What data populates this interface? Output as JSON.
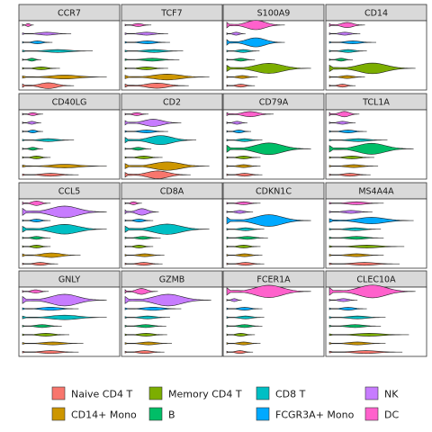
{
  "chart_data": {
    "type": "violin",
    "layout": "facet-grid-4x4",
    "xlabel": "",
    "ylabel": "",
    "groups": [
      "Naive CD4 T",
      "Memory CD4 T",
      "CD14+ Mono",
      "B",
      "CD8 T",
      "FCGR3A+ Mono",
      "NK",
      "DC"
    ],
    "colors": {
      "Naive CD4 T": "#F8766D",
      "CD14+ Mono": "#CD9600",
      "Memory CD4 T": "#7CAE00",
      "B": "#00BE67",
      "CD8 T": "#00BFC4",
      "FCGR3A+ Mono": "#00A9FF",
      "NK": "#C77CFF",
      "DC": "#FF61CC"
    },
    "row_order_bottom_to_top": [
      "Naive CD4 T",
      "CD14+ Mono",
      "Memory CD4 T",
      "B",
      "CD8 T",
      "FCGR3A+ Mono",
      "NK",
      "DC"
    ],
    "panels": [
      {
        "gene": "CCR7",
        "max": [
          0.55,
          0.4,
          0.9,
          0.2,
          0.75,
          0.32,
          0.52,
          0.12
        ],
        "width": [
          0.45,
          0.05,
          0.3,
          0.08,
          0.1,
          0.04,
          0.06,
          0.12
        ]
      },
      {
        "gene": "TCF7",
        "max": [
          0.68,
          0.46,
          0.9,
          0.58,
          0.62,
          0.48,
          0.46,
          0.28
        ],
        "width": [
          0.4,
          0.05,
          0.45,
          0.1,
          0.2,
          0.15,
          0.1,
          0.15
        ]
      },
      {
        "gene": "S100A9",
        "max": [
          0.3,
          0.9,
          0.33,
          0.3,
          0.35,
          0.62,
          0.2,
          0.62
        ],
        "width": [
          0.06,
          0.78,
          0.06,
          0.05,
          0.06,
          0.7,
          0.06,
          0.72
        ]
      },
      {
        "gene": "CD14",
        "max": [
          0.28,
          0.92,
          0.38,
          0.25,
          0.4,
          0.5,
          0.33,
          0.38
        ],
        "width": [
          0.04,
          0.82,
          0.04,
          0.04,
          0.05,
          0.08,
          0.05,
          0.4
        ]
      },
      {
        "gene": "CD40LG",
        "max": [
          0.6,
          0.3,
          0.9,
          0.22,
          0.55,
          0.22,
          0.2,
          0.22
        ],
        "width": [
          0.12,
          0.05,
          0.28,
          0.04,
          0.06,
          0.04,
          0.05,
          0.06
        ]
      },
      {
        "gene": "CD2",
        "max": [
          0.7,
          0.4,
          0.9,
          0.28,
          0.76,
          0.46,
          0.6,
          0.25
        ],
        "width": [
          0.6,
          0.05,
          0.65,
          0.06,
          0.7,
          0.08,
          0.55,
          0.1
        ]
      },
      {
        "gene": "CD79A",
        "max": [
          0.38,
          0.36,
          0.36,
          0.9,
          0.38,
          0.26,
          0.22,
          0.5
        ],
        "width": [
          0.05,
          0.04,
          0.05,
          0.9,
          0.04,
          0.04,
          0.04,
          0.4
        ]
      },
      {
        "gene": "TCL1A",
        "max": [
          0.44,
          0.48,
          0.52,
          0.9,
          0.62,
          0.4,
          0.28,
          0.32
        ],
        "width": [
          0.08,
          0.04,
          0.08,
          0.85,
          0.08,
          0.04,
          0.06,
          0.42
        ]
      },
      {
        "gene": "CCL5",
        "max": [
          0.38,
          0.3,
          0.62,
          0.3,
          0.9,
          0.3,
          0.9,
          0.3
        ],
        "width": [
          0.08,
          0.04,
          0.35,
          0.04,
          0.75,
          0.06,
          0.9,
          0.35
        ]
      },
      {
        "gene": "CD8A",
        "max": [
          0.4,
          0.3,
          0.42,
          0.38,
          0.9,
          0.3,
          0.36,
          0.18
        ],
        "width": [
          0.08,
          0.04,
          0.06,
          0.04,
          0.8,
          0.05,
          0.5,
          0.06
        ]
      },
      {
        "gene": "CDKN1C",
        "max": [
          0.4,
          0.36,
          0.38,
          0.44,
          0.4,
          0.9,
          0.28,
          0.36
        ],
        "width": [
          0.05,
          0.05,
          0.05,
          0.05,
          0.05,
          0.9,
          0.04,
          0.05
        ]
      },
      {
        "gene": "MS4A4A",
        "max": [
          0.75,
          0.8,
          0.58,
          0.58,
          0.55,
          0.9,
          0.46,
          0.58
        ],
        "width": [
          0.04,
          0.05,
          0.04,
          0.04,
          0.04,
          0.5,
          0.04,
          0.04
        ]
      },
      {
        "gene": "GNLY",
        "max": [
          0.6,
          0.5,
          0.65,
          0.42,
          0.9,
          0.6,
          0.9,
          0.28
        ],
        "width": [
          0.05,
          0.04,
          0.06,
          0.05,
          0.35,
          0.25,
          0.9,
          0.25
        ]
      },
      {
        "gene": "GZMB",
        "max": [
          0.42,
          0.45,
          0.5,
          0.44,
          0.48,
          0.6,
          0.92,
          0.35
        ],
        "width": [
          0.04,
          0.04,
          0.04,
          0.04,
          0.06,
          0.25,
          0.9,
          0.45
        ]
      },
      {
        "gene": "FCER1A",
        "max": [
          0.28,
          0.3,
          0.36,
          0.38,
          0.4,
          0.38,
          0.16,
          0.9
        ],
        "width": [
          0.04,
          0.04,
          0.04,
          0.04,
          0.04,
          0.04,
          0.04,
          0.95
        ]
      },
      {
        "gene": "CLEC10A",
        "max": [
          0.78,
          0.85,
          0.6,
          0.55,
          0.6,
          0.4,
          0.3,
          0.92
        ],
        "width": [
          0.02,
          0.05,
          0.02,
          0.02,
          0.02,
          0.02,
          0.02,
          0.98
        ]
      }
    ],
    "legend": {
      "position": "bottom",
      "items": [
        "Naive CD4 T",
        "Memory CD4 T",
        "CD8 T",
        "NK",
        "CD14+ Mono",
        "B",
        "FCGR3A+ Mono",
        "DC"
      ]
    }
  }
}
